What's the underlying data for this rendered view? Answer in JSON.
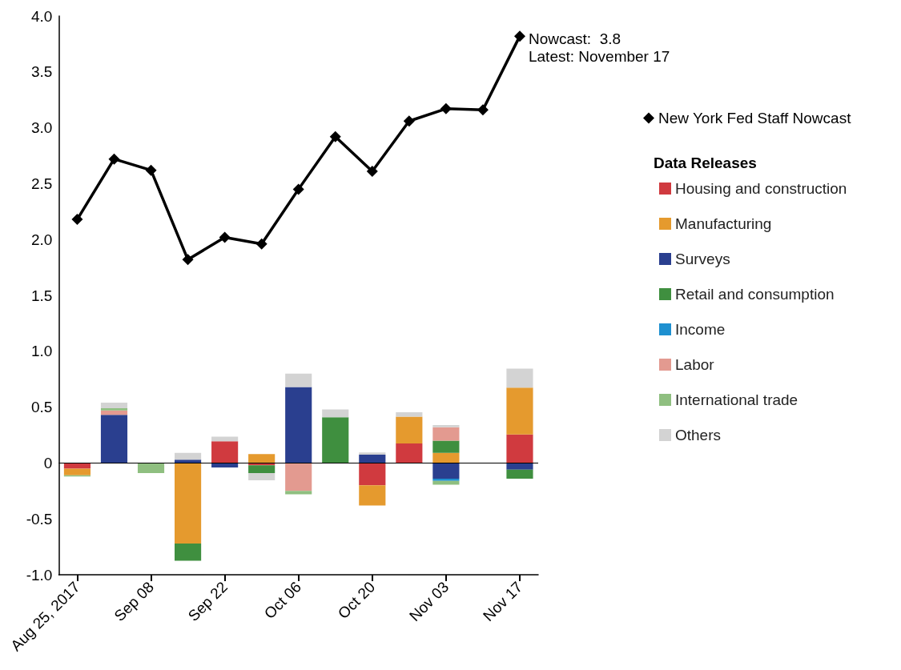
{
  "chart_data": {
    "type": "bar",
    "stacked": true,
    "categories": [
      "Aug 25, 2017",
      null,
      "Sep 08",
      null,
      "Sep 22",
      null,
      "Oct 06",
      null,
      "Oct 20",
      null,
      "Nov 03",
      null,
      "Nov 17"
    ],
    "series": [
      {
        "name": "New York Fed Staff Nowcast",
        "type": "line",
        "color": "#000000",
        "marker": "diamond",
        "values": [
          2.18,
          2.72,
          2.62,
          1.82,
          2.02,
          1.96,
          2.45,
          2.92,
          2.61,
          3.06,
          3.17,
          3.16,
          3.82
        ]
      },
      {
        "name": "Housing and construction",
        "color": "#d03a3f",
        "values": [
          -0.05,
          null,
          null,
          null,
          0.195,
          -0.02,
          null,
          null,
          -0.2,
          0.175,
          null,
          null,
          0.255
        ]
      },
      {
        "name": "Manufacturing",
        "color": "#e59a2e",
        "values": [
          -0.06,
          null,
          null,
          -0.72,
          null,
          0.08,
          null,
          null,
          -0.18,
          0.24,
          0.09,
          null,
          0.42
        ]
      },
      {
        "name": "Surveys",
        "color": "#2a3f8f",
        "values": [
          null,
          0.43,
          null,
          0.03,
          -0.04,
          null,
          0.68,
          null,
          0.075,
          null,
          -0.14,
          null,
          -0.06
        ]
      },
      {
        "name": "Retail and consumption",
        "color": "#3f8f3f",
        "values": [
          null,
          null,
          null,
          -0.155,
          null,
          -0.07,
          null,
          0.41,
          null,
          null,
          0.11,
          null,
          -0.08
        ]
      },
      {
        "name": "Income",
        "color": "#1e90d0",
        "values": [
          null,
          null,
          null,
          null,
          null,
          null,
          null,
          null,
          null,
          null,
          -0.02,
          null,
          null
        ]
      },
      {
        "name": "Labor",
        "color": "#e39a90",
        "values": [
          null,
          0.04,
          null,
          null,
          null,
          null,
          -0.25,
          null,
          null,
          null,
          0.12,
          null,
          null
        ]
      },
      {
        "name": "International trade",
        "color": "#8fbf80",
        "values": [
          -0.01,
          0.02,
          -0.09,
          null,
          null,
          null,
          -0.03,
          null,
          null,
          null,
          -0.035,
          null,
          null
        ]
      },
      {
        "name": "Others",
        "color": "#d3d3d3",
        "values": [
          null,
          0.05,
          null,
          0.06,
          0.04,
          -0.065,
          0.12,
          0.07,
          0.02,
          0.04,
          0.02,
          null,
          0.17
        ]
      }
    ],
    "legend_title": "Data Releases",
    "legend": "right",
    "annotations": [
      {
        "text": "Nowcast:  3.8",
        "x": "Nov 17",
        "y": 3.82
      },
      "Latest: November 17"
    ],
    "ref_lines": [
      {
        "axis": "y",
        "value": 0,
        "color": "#000000"
      }
    ],
    "ylim": [
      -1,
      4
    ],
    "yticks": [
      {
        "value": -1,
        "label": "-1.0"
      },
      {
        "value": -0.5,
        "label": "-0.5"
      },
      {
        "value": 0,
        "label": "0"
      },
      {
        "value": 0.5,
        "label": "0.5"
      },
      {
        "value": 1,
        "label": "1.0"
      },
      {
        "value": 1.5,
        "label": "1.5"
      },
      {
        "value": 2,
        "label": "2.0"
      },
      {
        "value": 2.5,
        "label": "2.5"
      },
      {
        "value": 3,
        "label": "3.0"
      },
      {
        "value": 3.5,
        "label": "3.5"
      },
      {
        "value": 4,
        "label": "4.0"
      }
    ],
    "grid": false
  }
}
